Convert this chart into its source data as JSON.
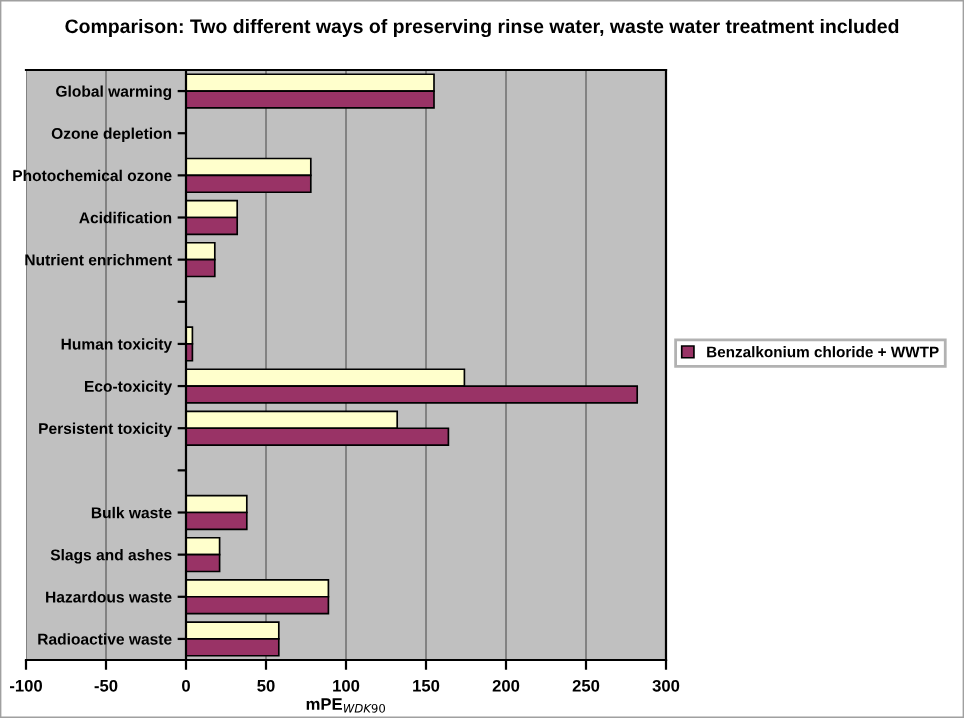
{
  "chart_data": {
    "type": "bar",
    "orientation": "horizontal",
    "title": "Comparison: Two different ways of preserving rinse water, waste water treatment included",
    "xlabel": "mPE$_{WDK90}$",
    "categories": [
      "Global warming",
      "Ozone depletion",
      "Photochemical ozone",
      "Acidification",
      "Nutrient enrichment",
      null,
      "Human toxicity",
      "Eco-toxicity",
      "Persistent toxicity",
      null,
      "Bulk waste",
      "Slags and ashes",
      "Hazardous waste",
      "Radioactive waste"
    ],
    "series": [
      {
        "color": "#ffffcc",
        "values": [
          155,
          0,
          78,
          32,
          18,
          null,
          4,
          174,
          132,
          null,
          38,
          21,
          89,
          58
        ]
      },
      {
        "name": "Benzalkonium chloride + WWTP",
        "color": "#993366",
        "values": [
          155,
          0,
          78,
          32,
          18,
          null,
          4,
          282,
          164,
          null,
          38,
          21,
          89,
          58
        ]
      }
    ],
    "xlim": [
      -100,
      300
    ],
    "xticks": [
      -100,
      -50,
      0,
      50,
      100,
      150,
      200,
      250,
      300
    ],
    "grid": "x",
    "legend": "right"
  }
}
